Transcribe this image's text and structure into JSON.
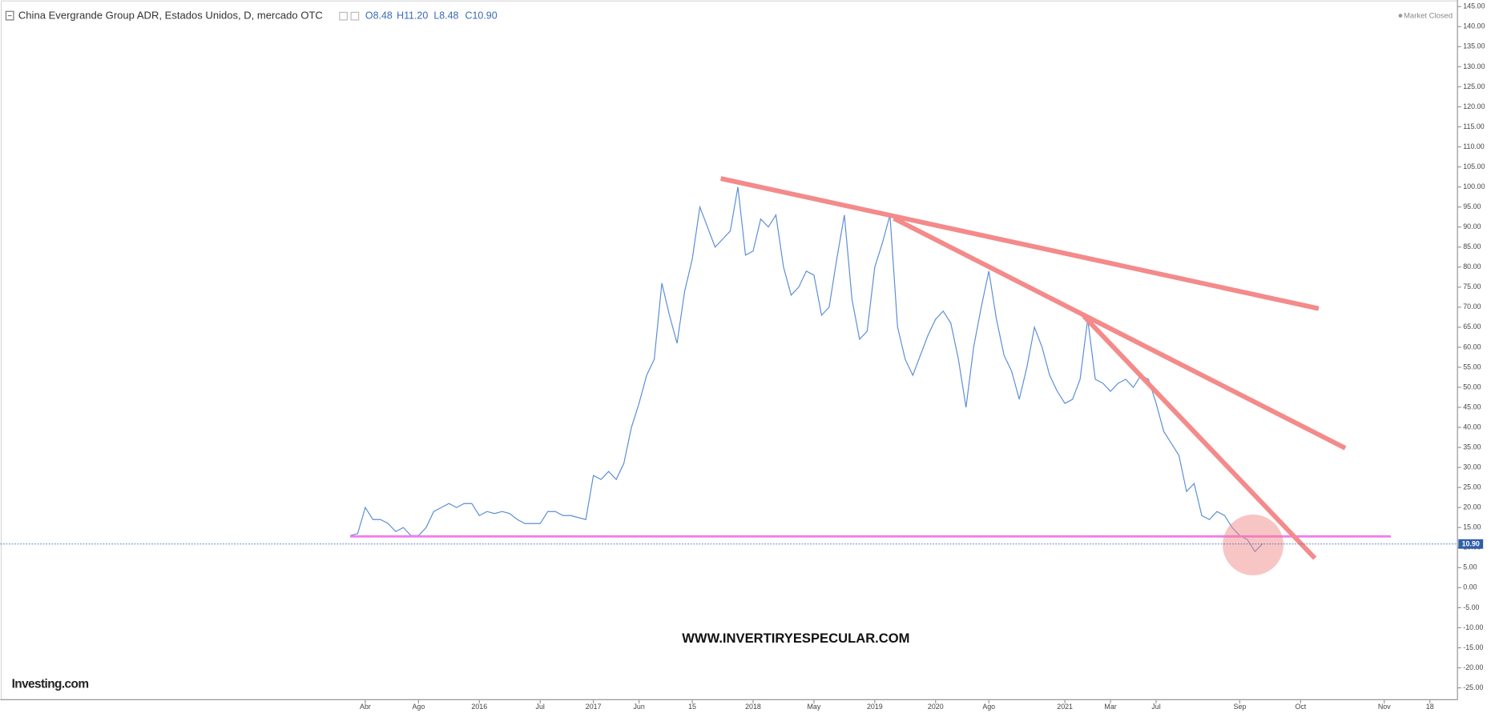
{
  "chart_data": {
    "type": "line",
    "title": "China Evergrande Group ADR, Estados Unidos, D, mercado OTC",
    "ohlc": [
      "O8.48",
      "H11.20",
      "L8.48",
      "C10.90"
    ],
    "status": "Market Closed",
    "watermark": "WWW.INVERTIRYESPECULAR.COM",
    "logo": "Investing.com",
    "color": "#5b8ed6",
    "last_price": {
      "value": 10.9,
      "label": "10.90"
    },
    "categories": [
      null,
      null,
      "Abr",
      null,
      null,
      null,
      null,
      null,
      null,
      "Ago",
      null,
      null,
      null,
      null,
      null,
      null,
      null,
      "2016",
      null,
      null,
      null,
      null,
      null,
      null,
      null,
      "Jul",
      null,
      null,
      null,
      null,
      null,
      null,
      "2017",
      null,
      null,
      null,
      null,
      null,
      "Jun",
      null,
      null,
      null,
      null,
      null,
      null,
      "15",
      null,
      null,
      null,
      null,
      null,
      null,
      null,
      "2018",
      null,
      null,
      null,
      null,
      null,
      null,
      null,
      "May",
      null,
      null,
      null,
      null,
      null,
      null,
      null,
      "2019",
      null,
      null,
      null,
      null,
      null,
      null,
      null,
      "2020",
      null,
      null,
      null,
      null,
      null,
      null,
      "Ago",
      null,
      null,
      null,
      null,
      null,
      null,
      null,
      null,
      null,
      "2021",
      null,
      null,
      null,
      null,
      null,
      "Mar",
      null,
      null,
      null,
      null,
      null,
      "Jul",
      null,
      null,
      null,
      null,
      null,
      null,
      null,
      null,
      null,
      null,
      "Sep",
      null,
      null,
      null,
      null,
      null,
      null,
      null,
      "Oct",
      null,
      null,
      null,
      null,
      null,
      null,
      null,
      null,
      null,
      null,
      "Nov",
      null,
      null,
      null,
      null,
      null,
      "18",
      null,
      null,
      null
    ],
    "values": [
      13,
      13.5,
      20,
      17,
      17,
      16,
      14,
      15,
      13,
      13,
      15,
      19,
      20,
      21,
      20,
      21,
      21,
      18,
      19,
      18.5,
      19,
      18.5,
      17,
      16,
      16,
      16,
      19,
      19,
      18,
      18,
      17.5,
      17,
      28,
      27,
      29,
      27,
      31,
      40,
      46,
      53,
      57,
      76,
      68,
      61,
      74,
      82,
      95,
      90,
      85,
      87,
      89,
      100,
      83,
      84,
      92,
      90,
      93,
      80,
      73,
      75,
      79,
      78,
      68,
      70,
      82,
      93,
      72,
      62,
      64,
      80,
      86,
      93,
      65,
      57,
      53,
      58,
      63,
      67,
      69,
      66,
      57,
      45,
      60,
      70,
      79,
      67,
      58,
      54,
      47,
      55,
      65,
      60,
      53,
      49,
      46,
      47,
      52,
      67,
      52,
      51,
      49,
      51,
      52,
      50,
      53,
      52,
      46,
      39,
      36,
      33,
      24,
      26,
      18,
      17,
      19,
      18,
      15,
      13,
      12,
      9,
      11,
      null,
      null,
      null,
      null,
      null,
      null,
      null,
      null,
      null,
      null,
      null,
      null,
      null,
      null,
      null,
      null,
      null,
      null,
      null,
      null,
      null,
      null,
      null,
      null,
      null
    ],
    "ylim": [
      -25,
      145
    ],
    "yticks": [
      {
        "value": -25,
        "label": "-25.00"
      },
      {
        "value": -20,
        "label": "-20.00"
      },
      {
        "value": -15,
        "label": "-15.00"
      },
      {
        "value": -10,
        "label": "-10.00"
      },
      {
        "value": -5,
        "label": "-5.00"
      },
      {
        "value": 0,
        "label": "0.00"
      },
      {
        "value": 5,
        "label": "5.00"
      },
      {
        "value": 10,
        "label": "10.00"
      },
      {
        "value": 15,
        "label": "15.00"
      },
      {
        "value": 20,
        "label": "20.00"
      },
      {
        "value": 25,
        "label": "25.00"
      },
      {
        "value": 30,
        "label": "30.00"
      },
      {
        "value": 35,
        "label": "35.00"
      },
      {
        "value": 40,
        "label": "40.00"
      },
      {
        "value": 45,
        "label": "45.00"
      },
      {
        "value": 50,
        "label": "50.00"
      },
      {
        "value": 55,
        "label": "55.00"
      },
      {
        "value": 60,
        "label": "60.00"
      },
      {
        "value": 65,
        "label": "65.00"
      },
      {
        "value": 70,
        "label": "70.00"
      },
      {
        "value": 75,
        "label": "75.00"
      },
      {
        "value": 80,
        "label": "80.00"
      },
      {
        "value": 85,
        "label": "85.00"
      },
      {
        "value": 90,
        "label": "90.00"
      },
      {
        "value": 95,
        "label": "95.00"
      },
      {
        "value": 100,
        "label": "100.00"
      },
      {
        "value": 105,
        "label": "105.00"
      },
      {
        "value": 110,
        "label": "110.00"
      },
      {
        "value": 115,
        "label": "115.00"
      },
      {
        "value": 120,
        "label": "120.00"
      },
      {
        "value": 125,
        "label": "125.00"
      },
      {
        "value": 130,
        "label": "130.00"
      },
      {
        "value": 135,
        "label": "135.00"
      },
      {
        "value": 140,
        "label": "140.00"
      },
      {
        "value": 145,
        "label": "145.00"
      }
    ]
  }
}
